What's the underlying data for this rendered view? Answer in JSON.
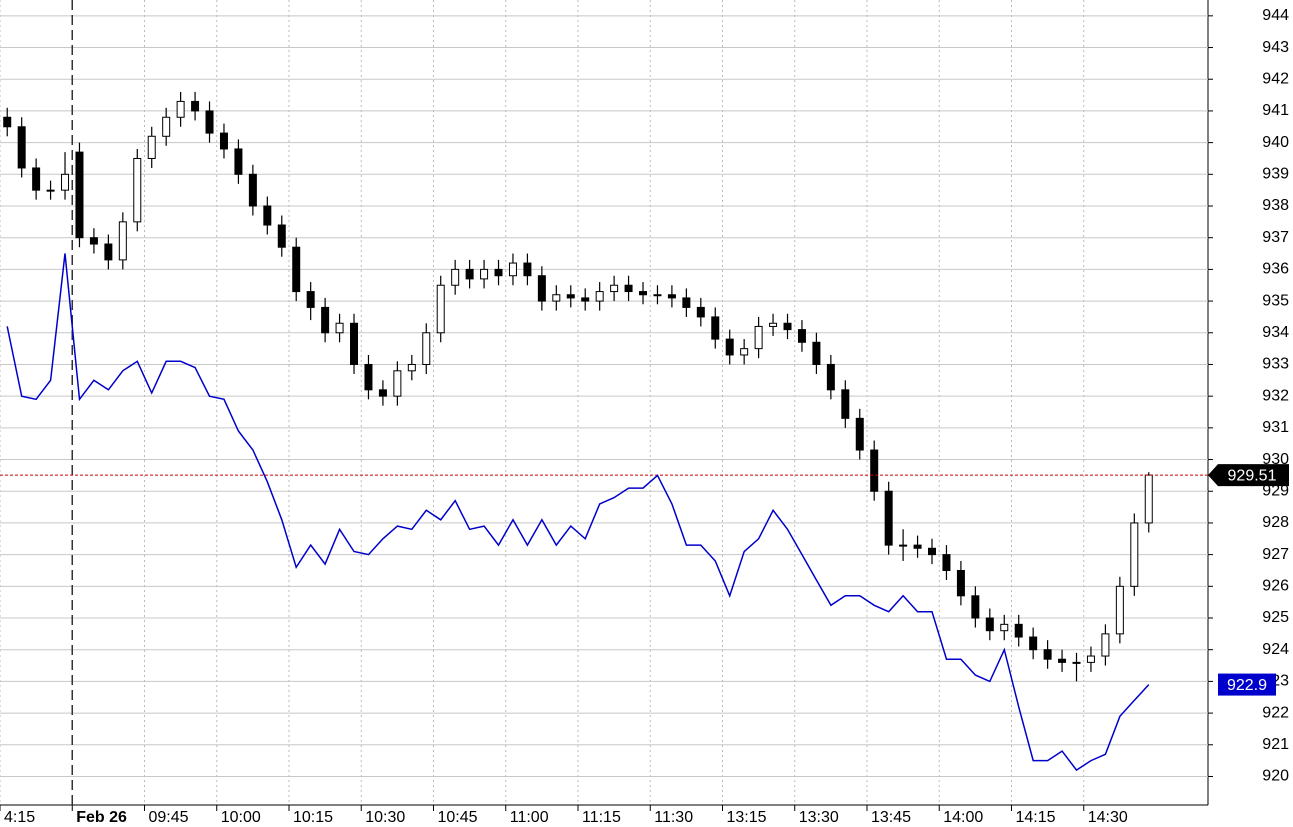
{
  "chart_data": {
    "type": "candlestick",
    "ylim": [
      919.1,
      944.5
    ],
    "yticks": [
      920,
      921,
      922,
      923,
      924,
      925,
      926,
      927,
      928,
      929,
      930,
      931,
      932,
      933,
      934,
      935,
      936,
      937,
      938,
      939,
      940,
      941,
      942,
      943,
      944
    ],
    "xlim": [
      -0.5,
      83.1
    ],
    "xticks": [
      {
        "value": -0.5,
        "label": "4:15"
      },
      {
        "value": 4.5,
        "label": "Feb 26"
      },
      {
        "value": 9.5,
        "label": "09:45"
      },
      {
        "value": 14.5,
        "label": "10:00"
      },
      {
        "value": 19.5,
        "label": "10:15"
      },
      {
        "value": 24.5,
        "label": "10:30"
      },
      {
        "value": 29.5,
        "label": "10:45"
      },
      {
        "value": 34.5,
        "label": "11:00"
      },
      {
        "value": 39.5,
        "label": "11:15"
      },
      {
        "value": 44.5,
        "label": "11:30"
      },
      {
        "value": 49.5,
        "label": "13:15"
      },
      {
        "value": 54.5,
        "label": "13:30"
      },
      {
        "value": 59.5,
        "label": "13:45"
      },
      {
        "value": 64.5,
        "label": "14:00"
      },
      {
        "value": 69.5,
        "label": "14:15"
      },
      {
        "value": 74.5,
        "label": "14:30"
      }
    ],
    "grid": true,
    "candles": {
      "color": "#000000",
      "open": [
        940.8,
        940.5,
        939.2,
        938.5,
        938.5,
        939.7,
        937,
        936.8,
        936.3,
        937.5,
        939.5,
        940.2,
        940.8,
        941.3,
        941,
        940.3,
        939.8,
        939,
        938,
        937.4,
        936.7,
        935.3,
        934.8,
        934,
        934.3,
        933,
        932.2,
        932,
        932.8,
        933,
        934,
        935.5,
        936,
        935.7,
        936,
        935.8,
        936.2,
        935.8,
        935,
        935.2,
        935.1,
        935,
        935.3,
        935.5,
        935.3,
        935.2,
        935.2,
        935.1,
        934.8,
        934.5,
        933.8,
        933.3,
        933.5,
        934.2,
        934.3,
        934.1,
        933.7,
        933,
        932.2,
        931.3,
        930.3,
        929,
        927.3,
        927.3,
        927.2,
        927,
        926.5,
        925.7,
        925,
        924.6,
        924.8,
        924.4,
        924,
        923.7,
        923.6,
        923.6,
        923.8,
        924.5,
        926,
        928
      ],
      "high": [
        941.1,
        940.8,
        939.5,
        938.8,
        939.7,
        940,
        937.3,
        937.1,
        937.8,
        939.8,
        940.5,
        941.1,
        941.6,
        941.6,
        941.3,
        940.6,
        940.1,
        939.3,
        938.3,
        937.7,
        937,
        935.6,
        935.1,
        934.6,
        934.6,
        933.3,
        932.5,
        933.1,
        933.3,
        934.3,
        935.8,
        936.3,
        936.3,
        936.3,
        936.3,
        936.5,
        936.5,
        936.1,
        935.5,
        935.5,
        935.4,
        935.6,
        935.8,
        935.8,
        935.6,
        935.5,
        935.5,
        935.4,
        935.1,
        934.8,
        934.1,
        933.8,
        934.5,
        934.6,
        934.6,
        934.4,
        934,
        933.3,
        932.5,
        931.6,
        930.6,
        929.3,
        927.8,
        927.6,
        927.5,
        927.3,
        926.8,
        926,
        925.3,
        925.1,
        925.1,
        924.7,
        924.3,
        924,
        923.9,
        924.1,
        924.8,
        926.3,
        928.3,
        929.6
      ],
      "low": [
        940.2,
        938.9,
        938.2,
        938.2,
        938.2,
        936.7,
        936.5,
        936,
        936,
        937.2,
        939.2,
        939.9,
        940.5,
        940.7,
        940,
        939.5,
        938.7,
        937.7,
        937.1,
        936.4,
        935,
        934.4,
        933.7,
        933.7,
        932.7,
        931.9,
        931.7,
        931.7,
        932.5,
        932.7,
        933.7,
        935.2,
        935.4,
        935.4,
        935.5,
        935.5,
        935.5,
        934.7,
        934.7,
        934.8,
        934.7,
        934.7,
        935,
        935,
        934.9,
        934.9,
        934.8,
        934.5,
        934.2,
        933.5,
        933,
        933,
        933.2,
        933.9,
        933.8,
        933.4,
        932.7,
        931.9,
        931,
        930,
        928.7,
        927,
        926.8,
        926.9,
        926.7,
        926.2,
        925.4,
        924.7,
        924.3,
        924.3,
        924.1,
        923.7,
        923.4,
        923.3,
        923,
        923.3,
        923.5,
        924.2,
        925.7,
        927.7
      ],
      "close": [
        940.5,
        939.2,
        938.5,
        938.5,
        939,
        937,
        936.8,
        936.3,
        937.5,
        939.5,
        940.2,
        940.8,
        941.3,
        941,
        940.3,
        939.8,
        939,
        938,
        937.4,
        936.7,
        935.3,
        934.8,
        934,
        934.3,
        933,
        932.2,
        932,
        932.8,
        933,
        934,
        935.5,
        936,
        935.7,
        936,
        935.8,
        936.2,
        935.8,
        935,
        935.2,
        935.1,
        935,
        935.3,
        935.5,
        935.3,
        935.2,
        935.2,
        935.1,
        934.8,
        934.5,
        933.8,
        933.3,
        933.5,
        934.2,
        934.3,
        934.1,
        933.7,
        933,
        932.2,
        931.3,
        930.3,
        929,
        927.3,
        927.3,
        927.2,
        927,
        926.5,
        925.7,
        925,
        924.6,
        924.8,
        924.4,
        924,
        923.7,
        923.6,
        923.6,
        923.8,
        924.5,
        926,
        928,
        929.51
      ],
      "last": 929.51,
      "last_color": "#cc0000"
    },
    "line": {
      "color": "#0000cc",
      "values": [
        934.2,
        932.0,
        931.9,
        932.5,
        936.5,
        931.9,
        932.5,
        932.2,
        932.8,
        933.1,
        932.1,
        933.1,
        933.1,
        932.9,
        932.0,
        931.9,
        930.9,
        930.3,
        929.3,
        928.1,
        926.6,
        927.3,
        926.7,
        927.8,
        927.1,
        927.0,
        927.5,
        927.9,
        927.8,
        928.4,
        928.1,
        928.7,
        927.8,
        927.9,
        927.3,
        928.1,
        927.3,
        928.1,
        927.3,
        927.9,
        927.5,
        928.6,
        928.8,
        929.1,
        929.1,
        929.5,
        928.6,
        927.3,
        927.3,
        926.8,
        925.7,
        927.1,
        927.5,
        928.4,
        927.8,
        927.0,
        926.2,
        925.4,
        925.7,
        925.7,
        925.4,
        925.2,
        925.7,
        925.2,
        925.2,
        923.7,
        923.7,
        923.2,
        923.0,
        924.0,
        922.2,
        920.5,
        920.5,
        920.8,
        920.2,
        920.5,
        920.7,
        921.9,
        922.4,
        922.9
      ],
      "last": 922.9
    }
  }
}
